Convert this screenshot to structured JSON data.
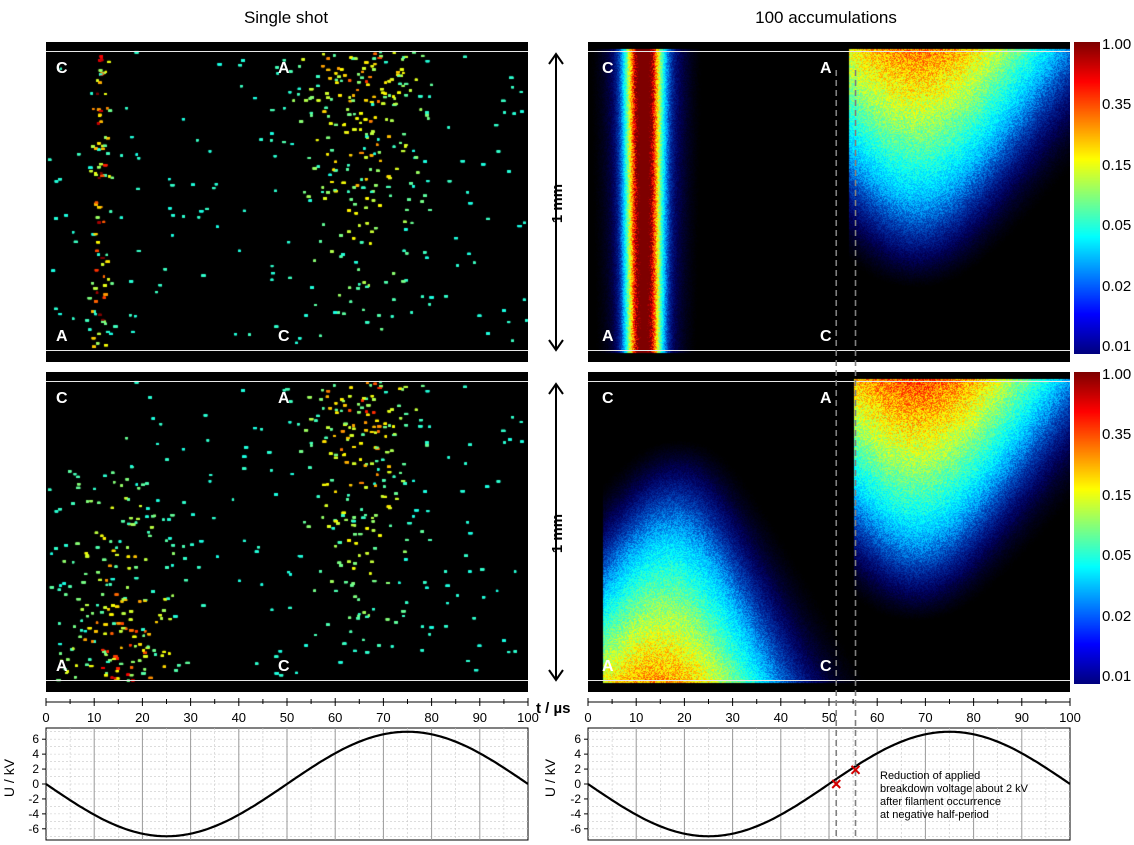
{
  "titles": {
    "left": "Single shot",
    "right": "100 accumulations"
  },
  "electrode_labels": {
    "cathode": "C",
    "anode": "A"
  },
  "scale_label": "1 mm",
  "time_axis_label": "t / µs",
  "voltage_axis_label": "U / kV",
  "annotation": [
    "Reduction of applied",
    "breakdown voltage about 2 kV",
    "after filament occurrence",
    "at negative half-period"
  ],
  "colors": {
    "background": "#000000",
    "grid": "#bdbdbd",
    "curve": "#000000",
    "marker": "#d40000",
    "dashed": "#808080"
  },
  "chart_data": [
    {
      "type": "heatmap",
      "panel": "top-left",
      "colormap": "jet",
      "xlim": [
        0,
        100
      ],
      "x_ticks": [
        0,
        10,
        20,
        30,
        40,
        50,
        60,
        70,
        80,
        90,
        100
      ],
      "xlabel": "t / µs"
    },
    {
      "type": "heatmap",
      "panel": "top-right",
      "colormap": "jet",
      "colorbar_scale": "log",
      "colorbar_ticks": [
        "1.00",
        "0.35",
        "0.15",
        "0.05",
        "0.02",
        "0.01"
      ],
      "xlim": [
        0,
        100
      ],
      "x_ticks": [
        0,
        10,
        20,
        30,
        40,
        50,
        60,
        70,
        80,
        90,
        100
      ]
    },
    {
      "type": "heatmap",
      "panel": "bottom-left",
      "colormap": "jet",
      "xlim": [
        0,
        100
      ]
    },
    {
      "type": "heatmap",
      "panel": "bottom-right",
      "colormap": "jet",
      "colorbar_scale": "log",
      "colorbar_ticks": [
        "1.00",
        "0.35",
        "0.15",
        "0.05",
        "0.02",
        "0.01"
      ],
      "xlim": [
        0,
        100
      ]
    },
    {
      "type": "line",
      "panel": "voltage-left",
      "xlabel": "",
      "ylabel": "U / kV",
      "xlim": [
        0,
        100
      ],
      "ylim": [
        -7.5,
        7.5
      ],
      "y_ticks": [
        6,
        4,
        2,
        0,
        -2,
        -4,
        -6
      ],
      "amplitude_kv": 7,
      "period_us": 100,
      "zero_crossing_up_us": 50
    },
    {
      "type": "line",
      "panel": "voltage-right",
      "xlabel": "",
      "ylabel": "U / kV",
      "xlim": [
        0,
        100
      ],
      "ylim": [
        -7.5,
        7.5
      ],
      "y_ticks": [
        6,
        4,
        2,
        0,
        -2,
        -4,
        -6
      ],
      "amplitude_kv": 7,
      "period_us": 100,
      "zero_crossing_up_us": 50,
      "markers": [
        {
          "x": 51.5,
          "y": 0
        },
        {
          "x": 55.5,
          "y": 1.9
        }
      ]
    }
  ]
}
